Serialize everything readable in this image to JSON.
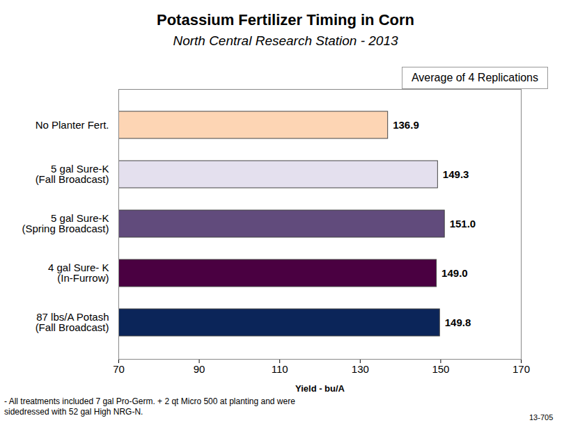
{
  "chart_data": {
    "type": "bar",
    "orientation": "horizontal",
    "title": "Potassium Fertilizer Timing in Corn",
    "subtitle": "North Central Research Station - 2013",
    "annotation": "Average of 4 Replications",
    "footnote": "- All treatments included 7 gal Pro-Germ. + 2 qt Micro 500 at planting and were sidedressed with 52 gal High NRG-N.",
    "source_code": "13-705",
    "x_label": "Yield - bu/A",
    "categories": [
      "No Planter Fert.",
      "5 gal Sure-K\n(Fall Broadcast)",
      "5 gal Sure-K\n(Spring Broadcast)",
      "4 gal Sure- K\n(In-Furrow)",
      "87 lbs/A Potash\n(Fall Broadcast)"
    ],
    "values": [
      136.9,
      149.3,
      151.0,
      149.0,
      149.8
    ],
    "value_labels": [
      "136.9",
      "149.3",
      "151.0",
      "149.0",
      "149.8"
    ],
    "colors": [
      "#fdd5b4",
      "#e4e0ee",
      "#614b7c",
      "#4a0041",
      "#0b2559"
    ],
    "xlim": [
      70,
      170
    ],
    "xticks": [
      70,
      90,
      110,
      130,
      150,
      170
    ],
    "grid": false,
    "data_labels": true
  }
}
